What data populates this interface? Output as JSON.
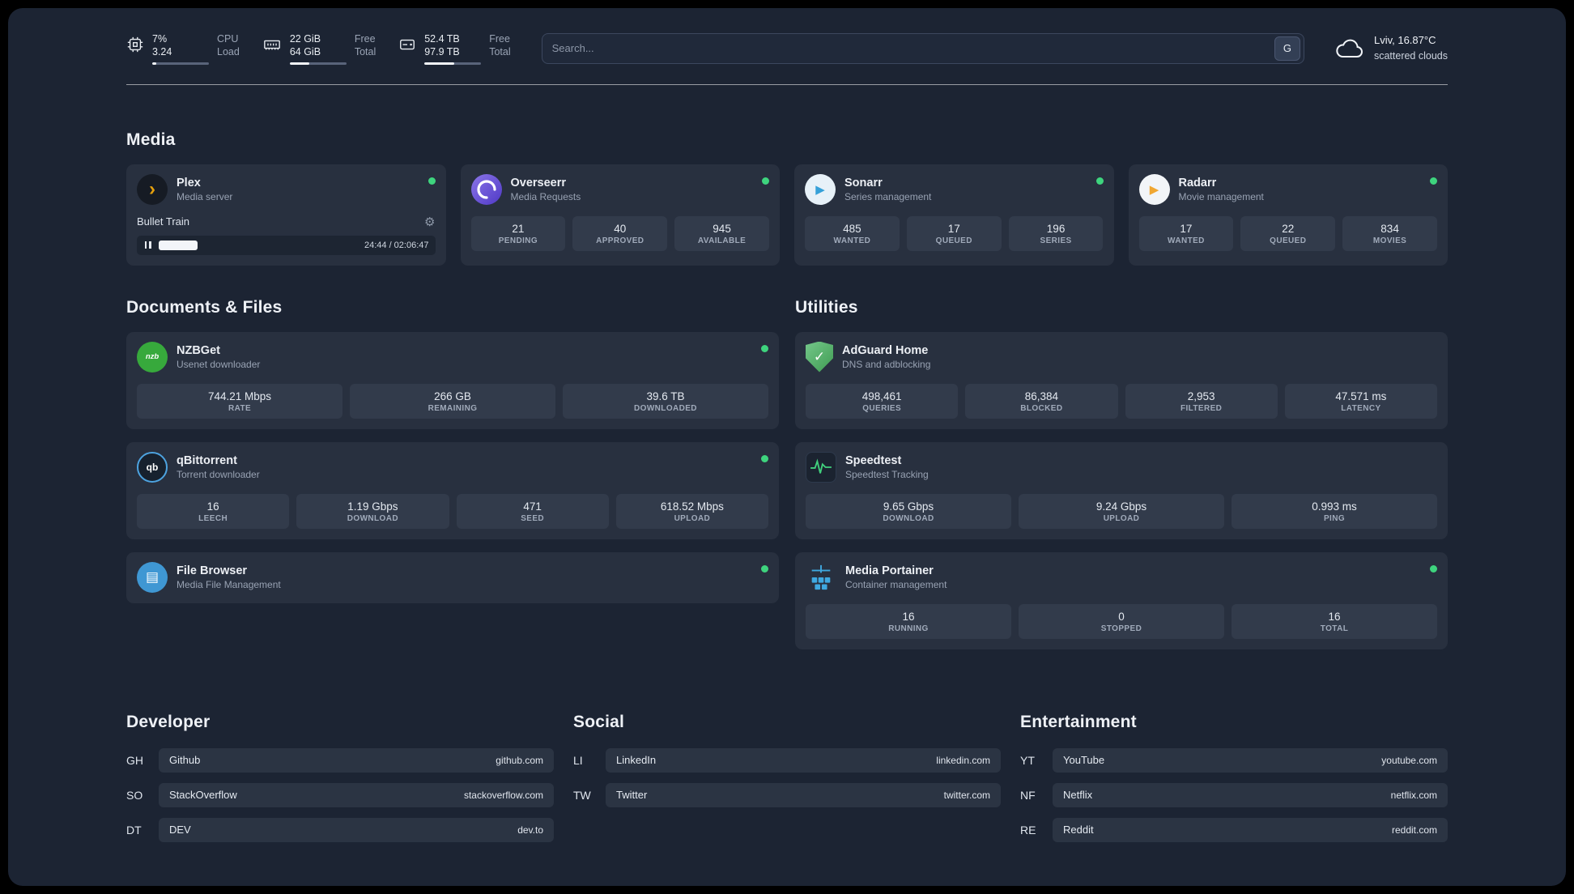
{
  "colors": {
    "background": "#1c2433",
    "card": "#28303f",
    "tile": "#323b4b",
    "status_online": "#3ed47e",
    "plex_accent": "#e5a00d",
    "sonarr_accent": "#35a0d8",
    "radarr_accent": "#f0a732",
    "nzbget_accent": "#37a93c",
    "adguard_accent": "#3f9c52",
    "speedtest_line": "#41d07d",
    "portainer_accent": "#3fa8e0"
  },
  "icons": {
    "gear": "⚙",
    "plex_glyph": "›",
    "sonarr_glyph": "▶",
    "radarr_glyph": "▶",
    "nzbget_glyph": "nzb",
    "qbittorrent_glyph": "qb",
    "filebrowser_glyph": "▤",
    "adguard_glyph": "✓"
  },
  "topbar": {
    "cpu": {
      "line1": "7%",
      "line2": "3.24",
      "label1": "CPU",
      "label2": "Load",
      "bar_percent": 7
    },
    "memory": {
      "line1": "22 GiB",
      "line2": "64 GiB",
      "label1": "Free",
      "label2": "Total",
      "bar_percent": 34
    },
    "disk": {
      "line1": "52.4 TB",
      "line2": "97.9 TB",
      "label1": "Free",
      "label2": "Total",
      "bar_percent": 53
    },
    "search": {
      "placeholder": "Search...",
      "button_label": "G"
    },
    "weather": {
      "location": "Lviv, 16.87°C",
      "condition": "scattered clouds"
    }
  },
  "sections": {
    "media": {
      "title": "Media",
      "plex": {
        "name": "Plex",
        "subtitle": "Media server",
        "track": "Bullet Train",
        "time": "24:44 / 02:06:47",
        "progress_percent": 19.5
      },
      "overseerr": {
        "name": "Overseerr",
        "subtitle": "Media Requests",
        "stats": [
          {
            "value": "21",
            "label": "PENDING"
          },
          {
            "value": "40",
            "label": "APPROVED"
          },
          {
            "value": "945",
            "label": "AVAILABLE"
          }
        ]
      },
      "sonarr": {
        "name": "Sonarr",
        "subtitle": "Series management",
        "stats": [
          {
            "value": "485",
            "label": "WANTED"
          },
          {
            "value": "17",
            "label": "QUEUED"
          },
          {
            "value": "196",
            "label": "SERIES"
          }
        ]
      },
      "radarr": {
        "name": "Radarr",
        "subtitle": "Movie management",
        "stats": [
          {
            "value": "17",
            "label": "WANTED"
          },
          {
            "value": "22",
            "label": "QUEUED"
          },
          {
            "value": "834",
            "label": "MOVIES"
          }
        ]
      }
    },
    "documents": {
      "title": "Documents & Files",
      "nzbget": {
        "name": "NZBGet",
        "subtitle": "Usenet downloader",
        "stats": [
          {
            "value": "744.21 Mbps",
            "label": "RATE"
          },
          {
            "value": "266 GB",
            "label": "REMAINING"
          },
          {
            "value": "39.6 TB",
            "label": "DOWNLOADED"
          }
        ]
      },
      "qbittorrent": {
        "name": "qBittorrent",
        "subtitle": "Torrent downloader",
        "stats": [
          {
            "value": "16",
            "label": "LEECH"
          },
          {
            "value": "1.19 Gbps",
            "label": "DOWNLOAD"
          },
          {
            "value": "471",
            "label": "SEED"
          },
          {
            "value": "618.52 Mbps",
            "label": "UPLOAD"
          }
        ]
      },
      "filebrowser": {
        "name": "File Browser",
        "subtitle": "Media File Management"
      }
    },
    "utilities": {
      "title": "Utilities",
      "adguard": {
        "name": "AdGuard Home",
        "subtitle": "DNS and adblocking",
        "stats": [
          {
            "value": "498,461",
            "label": "QUERIES"
          },
          {
            "value": "86,384",
            "label": "BLOCKED"
          },
          {
            "value": "2,953",
            "label": "FILTERED"
          },
          {
            "value": "47.571 ms",
            "label": "LATENCY"
          }
        ]
      },
      "speedtest": {
        "name": "Speedtest",
        "subtitle": "Speedtest Tracking",
        "stats": [
          {
            "value": "9.65 Gbps",
            "label": "DOWNLOAD"
          },
          {
            "value": "9.24 Gbps",
            "label": "UPLOAD"
          },
          {
            "value": "0.993 ms",
            "label": "PING"
          }
        ]
      },
      "portainer": {
        "name": "Media Portainer",
        "subtitle": "Container management",
        "stats": [
          {
            "value": "16",
            "label": "RUNNING"
          },
          {
            "value": "0",
            "label": "STOPPED"
          },
          {
            "value": "16",
            "label": "TOTAL"
          }
        ]
      }
    },
    "developer": {
      "title": "Developer",
      "links": [
        {
          "abbr": "GH",
          "name": "Github",
          "domain": "github.com"
        },
        {
          "abbr": "SO",
          "name": "StackOverflow",
          "domain": "stackoverflow.com"
        },
        {
          "abbr": "DT",
          "name": "DEV",
          "domain": "dev.to"
        }
      ]
    },
    "social": {
      "title": "Social",
      "links": [
        {
          "abbr": "LI",
          "name": "LinkedIn",
          "domain": "linkedin.com"
        },
        {
          "abbr": "TW",
          "name": "Twitter",
          "domain": "twitter.com"
        }
      ]
    },
    "entertainment": {
      "title": "Entertainment",
      "links": [
        {
          "abbr": "YT",
          "name": "YouTube",
          "domain": "youtube.com"
        },
        {
          "abbr": "NF",
          "name": "Netflix",
          "domain": "netflix.com"
        },
        {
          "abbr": "RE",
          "name": "Reddit",
          "domain": "reddit.com"
        }
      ]
    }
  }
}
